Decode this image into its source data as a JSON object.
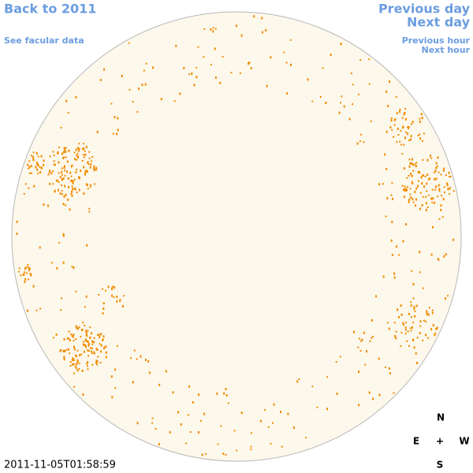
{
  "header": {
    "back": "Back to 2011",
    "facular": "See facular data",
    "previous_day": "Previous day",
    "next_day": "Next day",
    "previous_hour": "Previous hour",
    "next_hour": "Next hour"
  },
  "compass": {
    "north": "N",
    "east": "E",
    "center": "+",
    "west": "W",
    "south": "S"
  },
  "timestamp": "2011-11-05T01:58:59"
}
